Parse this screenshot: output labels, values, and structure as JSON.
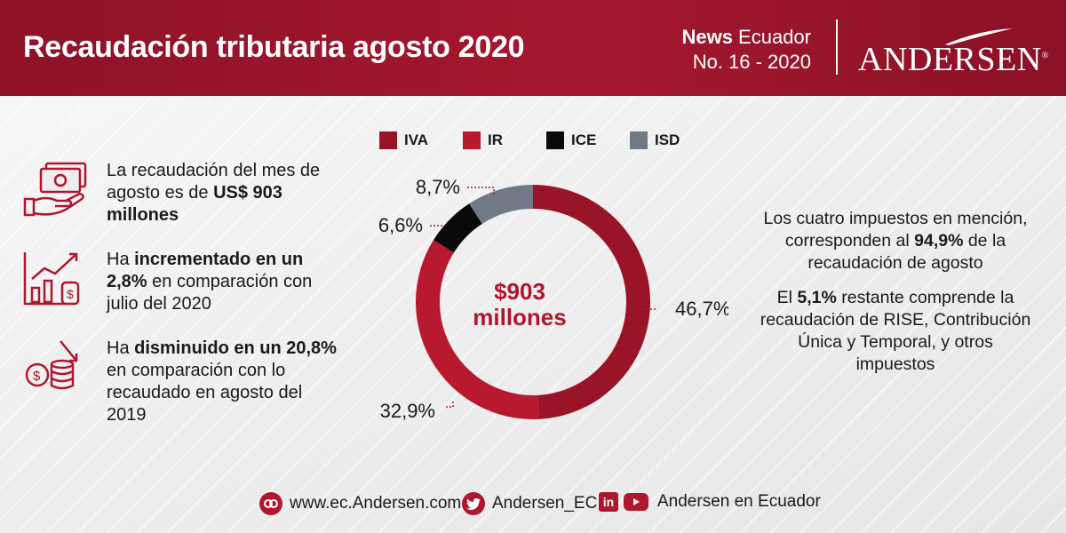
{
  "header": {
    "title": "Recaudación tributaria agosto 2020",
    "news_bold": "News",
    "news_rest": " Ecuador",
    "issue": "No. 16 - 2020",
    "logo": "ANDERSEN",
    "logo_mark": "®"
  },
  "facts": [
    {
      "icon": "money-hand-icon",
      "pre": "La recaudación del mes de agosto es de ",
      "bold": "US$ 903 millones",
      "post": ""
    },
    {
      "icon": "growth-chart-icon",
      "pre": "Ha ",
      "bold": "incrementado en un 2,8%",
      "post": " en comparación con julio del 2020"
    },
    {
      "icon": "coins-down-icon",
      "pre": "Ha ",
      "bold": "disminuido en un 20,8%",
      "post": " en comparación con lo recaudado en agosto del 2019"
    }
  ],
  "chart_data": {
    "type": "pie",
    "hole": true,
    "center_label": "$903 millones",
    "legend": [
      "IVA",
      "IR",
      "ICE",
      "ISD"
    ],
    "series": [
      {
        "name": "IVA",
        "value": 46.7,
        "label": "46,7%",
        "color": "#9a1427"
      },
      {
        "name": "IR",
        "value": 32.9,
        "label": "32,9%",
        "color": "#b8192f"
      },
      {
        "name": "ICE",
        "value": 6.6,
        "label": "6,6%",
        "color": "#0a0a0a"
      },
      {
        "name": "ISD",
        "value": 8.7,
        "label": "8,7%",
        "color": "#6f7a86"
      }
    ]
  },
  "right_text": {
    "p1_pre": "Los cuatro impuestos en mención, corresponden al ",
    "p1_bold": "94,9%",
    "p1_post": " de la recaudación de agosto",
    "p2_pre": "El ",
    "p2_bold": "5,1%",
    "p2_post": " restante comprende la recaudación de RISE, Contribución Única y Temporal, y otros impuestos"
  },
  "footer": {
    "website": "www.ec.Andersen.com",
    "twitter": "Andersen_EC",
    "social_name": "Andersen en Ecuador"
  },
  "colors": {
    "brand": "#a4182f",
    "accent": "#b0162e"
  }
}
